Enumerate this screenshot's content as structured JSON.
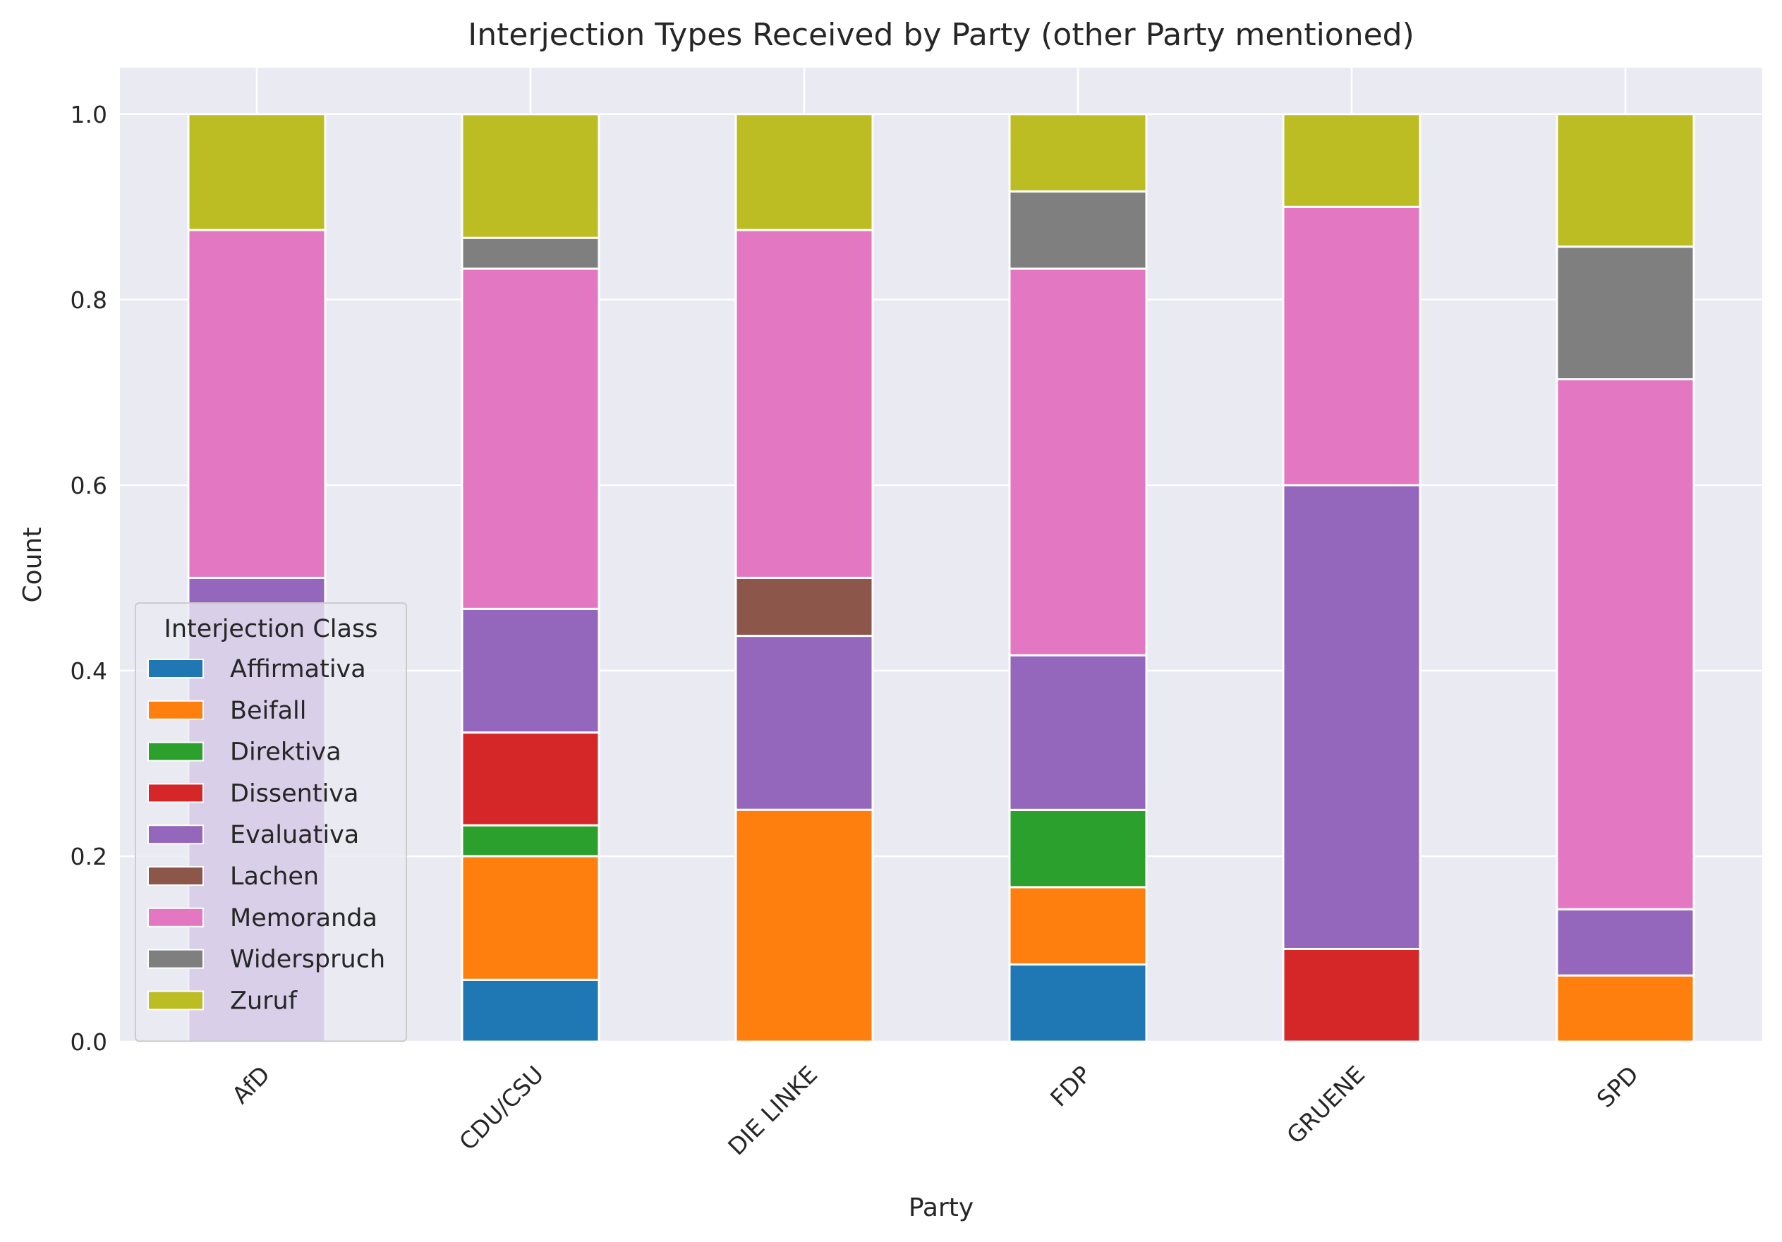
{
  "chart_data": {
    "type": "bar",
    "stacked": true,
    "title": "Interjection Types Received by Party (other Party mentioned)",
    "xlabel": "Party",
    "ylabel": "Count",
    "ylim": [
      0,
      1.05
    ],
    "yticks": [
      0.0,
      0.2,
      0.4,
      0.6,
      0.8,
      1.0
    ],
    "ytick_labels": [
      "0.0",
      "0.2",
      "0.4",
      "0.6",
      "0.8",
      "1.0"
    ],
    "grid": true,
    "categories": [
      "AfD",
      "CDU/CSU",
      "DIE LINKE",
      "FDP",
      "GRUENE",
      "SPD"
    ],
    "legend": {
      "title": "Interjection Class",
      "position": "lower-left"
    },
    "series": [
      {
        "name": "Affirmativa",
        "color": "#1f77b4",
        "values": [
          0,
          0.0667,
          0,
          0.0833,
          0,
          0
        ]
      },
      {
        "name": "Beifall",
        "color": "#ff7f0e",
        "values": [
          0,
          0.1333,
          0.25,
          0.0833,
          0,
          0.0714
        ]
      },
      {
        "name": "Direktiva",
        "color": "#2ca02c",
        "values": [
          0,
          0.0333,
          0,
          0.0833,
          0,
          0
        ]
      },
      {
        "name": "Dissentiva",
        "color": "#d62728",
        "values": [
          0,
          0.1,
          0,
          0,
          0.1,
          0
        ]
      },
      {
        "name": "Evaluativa",
        "color": "#9467bd",
        "values": [
          0.5,
          0.1333,
          0.1875,
          0.1667,
          0.5,
          0.0714
        ]
      },
      {
        "name": "Lachen",
        "color": "#8c564b",
        "values": [
          0,
          0,
          0.0625,
          0,
          0,
          0
        ]
      },
      {
        "name": "Memoranda",
        "color": "#e377c2",
        "values": [
          0.375,
          0.3667,
          0.375,
          0.4167,
          0.3,
          0.5714
        ]
      },
      {
        "name": "Widerspruch",
        "color": "#7f7f7f",
        "values": [
          0,
          0.0333,
          0,
          0.0833,
          0,
          0.1429
        ]
      },
      {
        "name": "Zuruf",
        "color": "#bcbd22",
        "values": [
          0.125,
          0.1333,
          0.125,
          0.0833,
          0.1,
          0.1429
        ]
      }
    ]
  }
}
